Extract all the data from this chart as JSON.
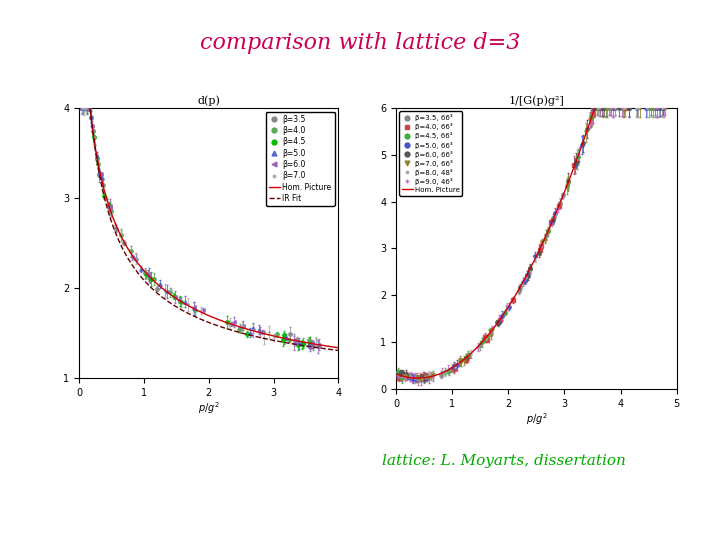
{
  "title": "comparison with lattice d=3",
  "title_color": "#cc0055",
  "title_fontsize": 16,
  "title_style": "italic",
  "caption": "lattice: L. Moyarts, dissertation",
  "caption_color": "#00aa00",
  "caption_fontsize": 11,
  "caption_style": "italic",
  "bg_color": "#ffffff",
  "left_plot": {
    "title": "d(p)",
    "xlabel": "p/g²",
    "xlim": [
      0,
      4
    ],
    "ylim": [
      1,
      4
    ],
    "yticks": [
      1,
      2,
      3,
      4
    ],
    "xticks": [
      0,
      1,
      2,
      3,
      4
    ],
    "colors": [
      "#888888",
      "#55aa55",
      "#00bb00",
      "#5566cc",
      "#9966bb",
      "#aaaaaa"
    ],
    "markers": [
      "o",
      "o",
      "o",
      "^",
      "<",
      "."
    ],
    "betas": [
      "3.5",
      "4.0",
      "4.5",
      "5.0",
      "6.0",
      "7.0"
    ],
    "curve_color": "#cc0000",
    "fit_color": "#660000"
  },
  "right_plot": {
    "title": "1/[G(p)g²]",
    "xlabel": "p/g²",
    "xlim": [
      0,
      5
    ],
    "ylim": [
      0,
      6
    ],
    "yticks": [
      0,
      1,
      2,
      3,
      4,
      5,
      6
    ],
    "xticks": [
      0,
      1,
      2,
      3,
      4,
      5
    ],
    "colors": [
      "#888888",
      "#cc4444",
      "#44aa44",
      "#4455cc",
      "#555555",
      "#888833",
      "#aaaaaa",
      "#cc66cc"
    ],
    "markers": [
      "o",
      "s",
      "o",
      "o",
      "o",
      "v",
      ".",
      "+"
    ],
    "betas": [
      "3.5, 66³",
      "4.0, 66³",
      "4.5, 66³",
      "5.0, 66³",
      "6.0, 66³",
      "7.0, 66³",
      "8.0, 48³",
      "9.0, 46³"
    ],
    "curve_color": "#cc0000"
  }
}
